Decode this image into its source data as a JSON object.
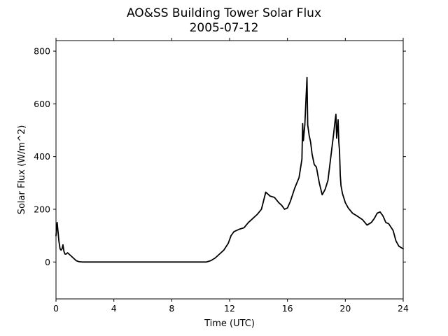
{
  "chart_data": {
    "type": "line",
    "title": "AO&SS Building Tower Solar Flux",
    "subtitle": "2005-07-12",
    "xlabel": "Time (UTC)",
    "ylabel": "Solar Flux (W/m^2)",
    "xlim": [
      0,
      24
    ],
    "ylim": [
      -140,
      840
    ],
    "xticks": [
      0,
      4,
      8,
      12,
      16,
      20,
      24
    ],
    "yticks": [
      0,
      200,
      400,
      600,
      800
    ],
    "grid": false,
    "line_color": "#000000",
    "series": [
      {
        "x": [
          0,
          0.08,
          0.15,
          0.2,
          0.28,
          0.35,
          0.42,
          0.48,
          0.55,
          0.62,
          0.7,
          0.8,
          0.9,
          1.0,
          1.2,
          1.4,
          1.6,
          1.8,
          2.2,
          4,
          8,
          10.4,
          10.7,
          11.0,
          11.3,
          11.6,
          11.9,
          12.1,
          12.3,
          12.5,
          12.7,
          13.0,
          13.3,
          13.6,
          13.9,
          14.2,
          14.5,
          14.8,
          15.1,
          15.4,
          15.6,
          15.8,
          16.0,
          16.2,
          16.5,
          16.8,
          17.0,
          17.05,
          17.1,
          17.2,
          17.3,
          17.35,
          17.4,
          17.5,
          17.6,
          17.7,
          17.85,
          18.0,
          18.2,
          18.4,
          18.6,
          18.8,
          19.0,
          19.2,
          19.3,
          19.35,
          19.4,
          19.5,
          19.55,
          19.6,
          19.65,
          19.7,
          19.8,
          20.0,
          20.2,
          20.5,
          20.8,
          21.2,
          21.5,
          21.8,
          22.0,
          22.2,
          22.4,
          22.6,
          22.8,
          23.0,
          23.3,
          23.5,
          23.7,
          24.0
        ],
        "y": [
          100,
          150,
          110,
          80,
          50,
          45,
          50,
          65,
          40,
          30,
          30,
          35,
          30,
          25,
          15,
          5,
          1,
          0,
          0,
          0,
          0,
          0,
          5,
          15,
          30,
          45,
          70,
          100,
          115,
          120,
          125,
          130,
          150,
          165,
          180,
          200,
          265,
          250,
          245,
          225,
          215,
          200,
          205,
          230,
          280,
          320,
          390,
          525,
          460,
          520,
          640,
          700,
          520,
          480,
          455,
          410,
          370,
          360,
          300,
          255,
          275,
          310,
          400,
          490,
          540,
          560,
          470,
          540,
          455,
          420,
          330,
          290,
          260,
          225,
          205,
          185,
          175,
          160,
          140,
          150,
          165,
          185,
          190,
          175,
          150,
          145,
          120,
          80,
          60,
          50
        ]
      }
    ]
  }
}
